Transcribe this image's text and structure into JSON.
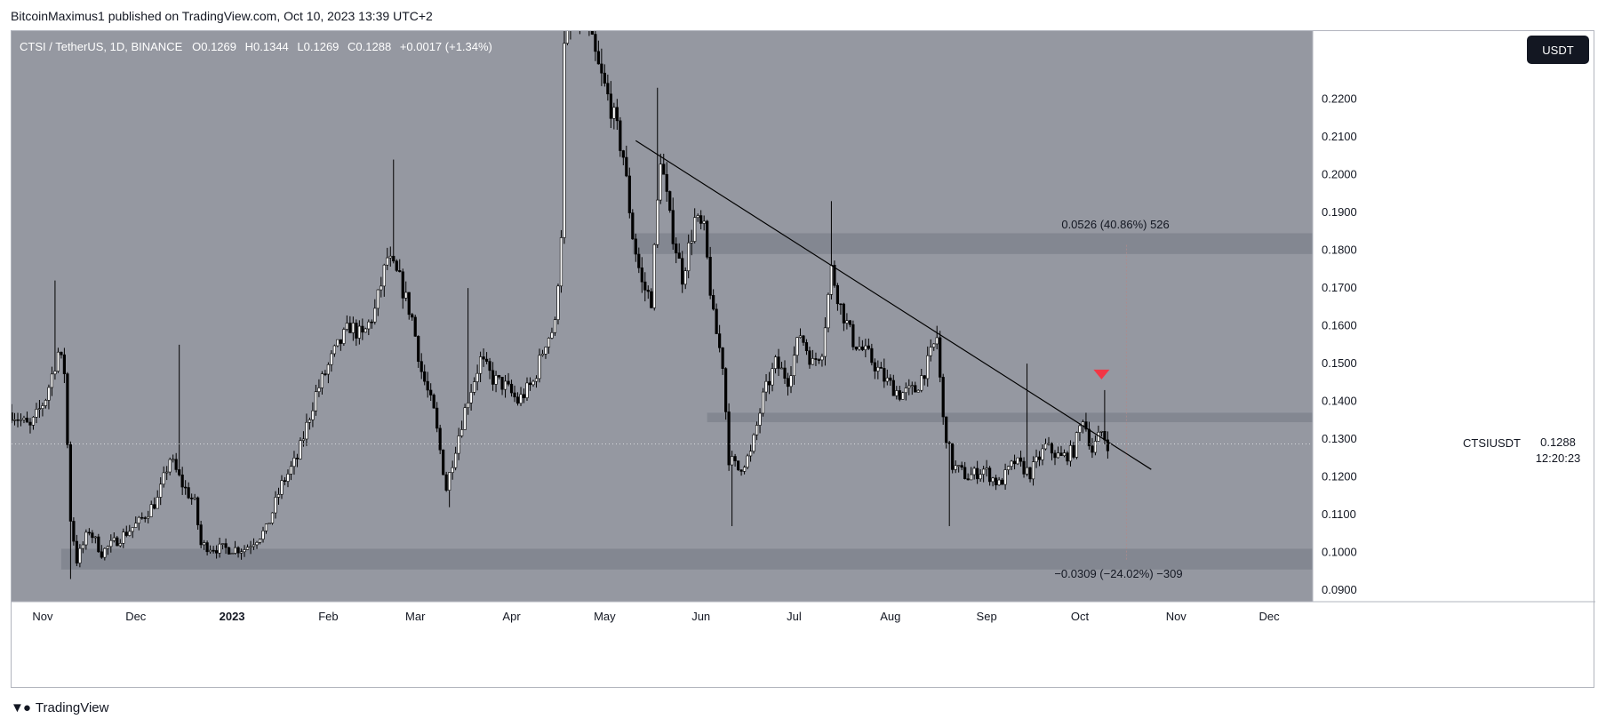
{
  "publisher": "BitcoinMaximus1 published on TradingView.com, Oct 10, 2023 13:39 UTC+2",
  "brand": "TradingView",
  "currency_button": "USDT",
  "legend": {
    "symbol": "CTSI / TetherUS, 1D, BINANCE",
    "o_label": "O",
    "o": "0.1269",
    "h_label": "H",
    "h": "0.1344",
    "l_label": "L",
    "l": "0.1269",
    "c_label": "C",
    "c": "0.1288",
    "change": "+0.0017 (+1.34%)"
  },
  "last_price": {
    "symbol": "CTSIUSDT",
    "price": "0.1288",
    "countdown": "12:20:23"
  },
  "measure_up": "0.0526 (40.86%) 526",
  "measure_down": "−0.0309 (−24.02%) −309",
  "colors": {
    "plot_bg": "#9598a1",
    "zone": "#838791",
    "candle": "#000000",
    "trendline": "#000000",
    "marker": "#f23645",
    "axis_text": "#131722"
  },
  "chart_data": {
    "type": "candlestick",
    "title": "",
    "ylim": [
      0.087,
      0.238
    ],
    "y_ticks": [
      0.22,
      0.21,
      0.2,
      0.19,
      0.18,
      0.17,
      0.16,
      0.15,
      0.14,
      0.13,
      0.12,
      0.11,
      0.1,
      0.09
    ],
    "y_tick_labels": [
      "0.2200",
      "0.2100",
      "0.2000",
      "0.1900",
      "0.1800",
      "0.1700",
      "0.1600",
      "0.1500",
      "0.1400",
      "0.1300",
      "0.1200",
      "0.1100",
      "0.1000",
      "0.0900"
    ],
    "x_range": [
      "2022-10-22",
      "2023-12-15"
    ],
    "x_ticks": [
      {
        "date": "2022-11-01",
        "label": "Nov",
        "bold": false
      },
      {
        "date": "2022-12-01",
        "label": "Dec",
        "bold": false
      },
      {
        "date": "2023-01-01",
        "label": "2023",
        "bold": true
      },
      {
        "date": "2023-02-01",
        "label": "Feb",
        "bold": false
      },
      {
        "date": "2023-03-01",
        "label": "Mar",
        "bold": false
      },
      {
        "date": "2023-04-01",
        "label": "Apr",
        "bold": false
      },
      {
        "date": "2023-05-01",
        "label": "May",
        "bold": false
      },
      {
        "date": "2023-06-01",
        "label": "Jun",
        "bold": false
      },
      {
        "date": "2023-07-01",
        "label": "Jul",
        "bold": false
      },
      {
        "date": "2023-08-01",
        "label": "Aug",
        "bold": false
      },
      {
        "date": "2023-09-01",
        "label": "Sep",
        "bold": false
      },
      {
        "date": "2023-10-01",
        "label": "Oct",
        "bold": false
      },
      {
        "date": "2023-11-01",
        "label": "Nov",
        "bold": false
      },
      {
        "date": "2023-12-01",
        "label": "Dec",
        "bold": false
      }
    ],
    "zones": [
      {
        "from": "2023-05-10",
        "to": "2023-12-15",
        "low": 0.179,
        "high": 0.1845
      },
      {
        "from": "2023-06-03",
        "to": "2023-12-15",
        "low": 0.1345,
        "high": 0.137
      },
      {
        "from": "2022-11-07",
        "to": "2023-12-15",
        "low": 0.0955,
        "high": 0.101
      }
    ],
    "trendline": {
      "from": [
        "2023-05-11",
        0.209
      ],
      "to": [
        "2023-10-24",
        0.122
      ]
    },
    "marker": {
      "date": "2023-10-08",
      "price": 0.147
    },
    "last_price": 0.1288,
    "measure": {
      "date": "2023-10-16",
      "high": 0.1814,
      "low": 0.0979,
      "base": 0.1288
    },
    "close_path": [
      [
        "2022-10-22",
        0.137
      ],
      [
        "2022-10-28",
        0.133
      ],
      [
        "2022-11-02",
        0.141
      ],
      [
        "2022-11-06",
        0.153
      ],
      [
        "2022-11-08",
        0.148
      ],
      [
        "2022-11-10",
        0.109
      ],
      [
        "2022-11-12",
        0.098
      ],
      [
        "2022-11-16",
        0.106
      ],
      [
        "2022-11-20",
        0.1
      ],
      [
        "2022-11-26",
        0.104
      ],
      [
        "2022-12-02",
        0.108
      ],
      [
        "2022-12-08",
        0.114
      ],
      [
        "2022-12-12",
        0.125
      ],
      [
        "2022-12-16",
        0.118
      ],
      [
        "2022-12-20",
        0.113
      ],
      [
        "2022-12-22",
        0.102
      ],
      [
        "2022-12-28",
        0.101
      ],
      [
        "2023-01-05",
        0.101
      ],
      [
        "2023-01-12",
        0.106
      ],
      [
        "2023-01-17",
        0.118
      ],
      [
        "2023-01-22",
        0.125
      ],
      [
        "2023-01-28",
        0.142
      ],
      [
        "2023-02-03",
        0.153
      ],
      [
        "2023-02-08",
        0.16
      ],
      [
        "2023-02-12",
        0.157
      ],
      [
        "2023-02-16",
        0.164
      ],
      [
        "2023-02-20",
        0.178
      ],
      [
        "2023-02-24",
        0.172
      ],
      [
        "2023-02-28",
        0.162
      ],
      [
        "2023-03-03",
        0.148
      ],
      [
        "2023-03-07",
        0.137
      ],
      [
        "2023-03-11",
        0.117
      ],
      [
        "2023-03-14",
        0.128
      ],
      [
        "2023-03-18",
        0.141
      ],
      [
        "2023-03-22",
        0.151
      ],
      [
        "2023-03-26",
        0.146
      ],
      [
        "2023-03-30",
        0.144
      ],
      [
        "2023-04-03",
        0.14
      ],
      [
        "2023-04-08",
        0.145
      ],
      [
        "2023-04-12",
        0.156
      ],
      [
        "2023-04-15",
        0.16
      ],
      [
        "2023-04-17",
        0.185
      ],
      [
        "2023-04-18",
        0.233
      ],
      [
        "2023-04-21",
        0.245
      ],
      [
        "2023-04-25",
        0.24
      ],
      [
        "2023-04-29",
        0.228
      ],
      [
        "2023-05-03",
        0.218
      ],
      [
        "2023-05-07",
        0.205
      ],
      [
        "2023-05-10",
        0.184
      ],
      [
        "2023-05-13",
        0.171
      ],
      [
        "2023-05-16",
        0.167
      ],
      [
        "2023-05-19",
        0.205
      ],
      [
        "2023-05-22",
        0.188
      ],
      [
        "2023-05-26",
        0.173
      ],
      [
        "2023-05-30",
        0.188
      ],
      [
        "2023-06-02",
        0.185
      ],
      [
        "2023-06-05",
        0.162
      ],
      [
        "2023-06-08",
        0.15
      ],
      [
        "2023-06-10",
        0.125
      ],
      [
        "2023-06-13",
        0.122
      ],
      [
        "2023-06-17",
        0.126
      ],
      [
        "2023-06-21",
        0.141
      ],
      [
        "2023-06-25",
        0.15
      ],
      [
        "2023-06-29",
        0.146
      ],
      [
        "2023-07-03",
        0.158
      ],
      [
        "2023-07-07",
        0.15
      ],
      [
        "2023-07-10",
        0.154
      ],
      [
        "2023-07-13",
        0.175
      ],
      [
        "2023-07-16",
        0.165
      ],
      [
        "2023-07-20",
        0.156
      ],
      [
        "2023-07-25",
        0.152
      ],
      [
        "2023-07-30",
        0.146
      ],
      [
        "2023-08-04",
        0.142
      ],
      [
        "2023-08-09",
        0.143
      ],
      [
        "2023-08-13",
        0.15
      ],
      [
        "2023-08-16",
        0.157
      ],
      [
        "2023-08-18",
        0.135
      ],
      [
        "2023-08-21",
        0.123
      ],
      [
        "2023-08-26",
        0.12
      ],
      [
        "2023-08-31",
        0.122
      ],
      [
        "2023-09-05",
        0.118
      ],
      [
        "2023-09-10",
        0.124
      ],
      [
        "2023-09-15",
        0.121
      ],
      [
        "2023-09-20",
        0.128
      ],
      [
        "2023-09-25",
        0.125
      ],
      [
        "2023-09-29",
        0.127
      ],
      [
        "2023-10-02",
        0.136
      ],
      [
        "2023-10-05",
        0.127
      ],
      [
        "2023-10-08",
        0.132
      ],
      [
        "2023-10-10",
        0.1288
      ]
    ],
    "wick_spikes": [
      {
        "date": "2022-11-05",
        "high": 0.172
      },
      {
        "date": "2022-11-10",
        "low": 0.093
      },
      {
        "date": "2022-12-15",
        "high": 0.155
      },
      {
        "date": "2023-02-22",
        "high": 0.204
      },
      {
        "date": "2023-03-12",
        "high": 0.112
      },
      {
        "date": "2023-03-18",
        "high": 0.17
      },
      {
        "date": "2023-04-18",
        "high": 0.24
      },
      {
        "date": "2023-05-18",
        "high": 0.223
      },
      {
        "date": "2023-06-11",
        "low": 0.107
      },
      {
        "date": "2023-07-13",
        "high": 0.193
      },
      {
        "date": "2023-08-16",
        "high": 0.16
      },
      {
        "date": "2023-08-20",
        "low": 0.107
      },
      {
        "date": "2023-09-14",
        "high": 0.15
      },
      {
        "date": "2023-10-09",
        "high": 0.143
      }
    ]
  }
}
